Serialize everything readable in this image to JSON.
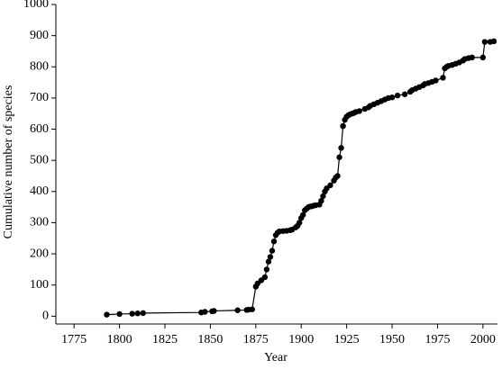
{
  "chart_data": {
    "type": "line",
    "xlabel": "Year",
    "ylabel": "Cumulative number of species",
    "x": [
      1793,
      1800,
      1807,
      1810,
      1813,
      1845,
      1847,
      1851,
      1852,
      1865,
      1870,
      1871,
      1873,
      1875,
      1876,
      1878,
      1880,
      1881,
      1882,
      1883,
      1884,
      1885,
      1886,
      1887,
      1888,
      1890,
      1892,
      1894,
      1895,
      1897,
      1898,
      1899,
      1900,
      1901,
      1902,
      1903,
      1904,
      1905,
      1906,
      1907,
      1908,
      1910,
      1911,
      1912,
      1913,
      1914,
      1916,
      1918,
      1919,
      1920,
      1921,
      1922,
      1923,
      1924,
      1925,
      1926,
      1927,
      1928,
      1929,
      1930,
      1932,
      1935,
      1937,
      1938,
      1940,
      1942,
      1944,
      1946,
      1948,
      1950,
      1953,
      1957,
      1960,
      1961,
      1963,
      1965,
      1967,
      1968,
      1970,
      1972,
      1974,
      1978,
      1979,
      1980,
      1981,
      1983,
      1985,
      1987,
      1989,
      1990,
      1992,
      1994,
      2000,
      2001,
      2004,
      2006
    ],
    "series": [
      {
        "color": "#000000",
        "values": [
          5,
          7,
          8,
          9,
          10,
          12,
          14,
          16,
          17,
          19,
          20,
          21,
          22,
          95,
          105,
          115,
          125,
          150,
          175,
          190,
          210,
          240,
          260,
          268,
          272,
          273,
          274,
          276,
          278,
          285,
          290,
          300,
          315,
          325,
          340,
          345,
          350,
          352,
          353,
          355,
          356,
          358,
          370,
          385,
          400,
          410,
          420,
          435,
          445,
          450,
          510,
          540,
          610,
          630,
          640,
          645,
          648,
          650,
          652,
          655,
          658,
          665,
          670,
          675,
          680,
          685,
          690,
          695,
          700,
          702,
          708,
          712,
          720,
          725,
          730,
          735,
          740,
          745,
          748,
          752,
          756,
          765,
          795,
          800,
          803,
          806,
          810,
          814,
          820,
          825,
          828,
          830,
          830,
          880,
          880,
          882
        ]
      }
    ],
    "xlim": [
      1765,
      2008
    ],
    "xticks": [
      1775,
      1800,
      1825,
      1850,
      1875,
      1900,
      1925,
      1950,
      1975,
      2000
    ],
    "ylim": [
      -25,
      1000
    ],
    "yticks": [
      0,
      100,
      200,
      300,
      400,
      500,
      600,
      700,
      800,
      900,
      1000
    ]
  }
}
